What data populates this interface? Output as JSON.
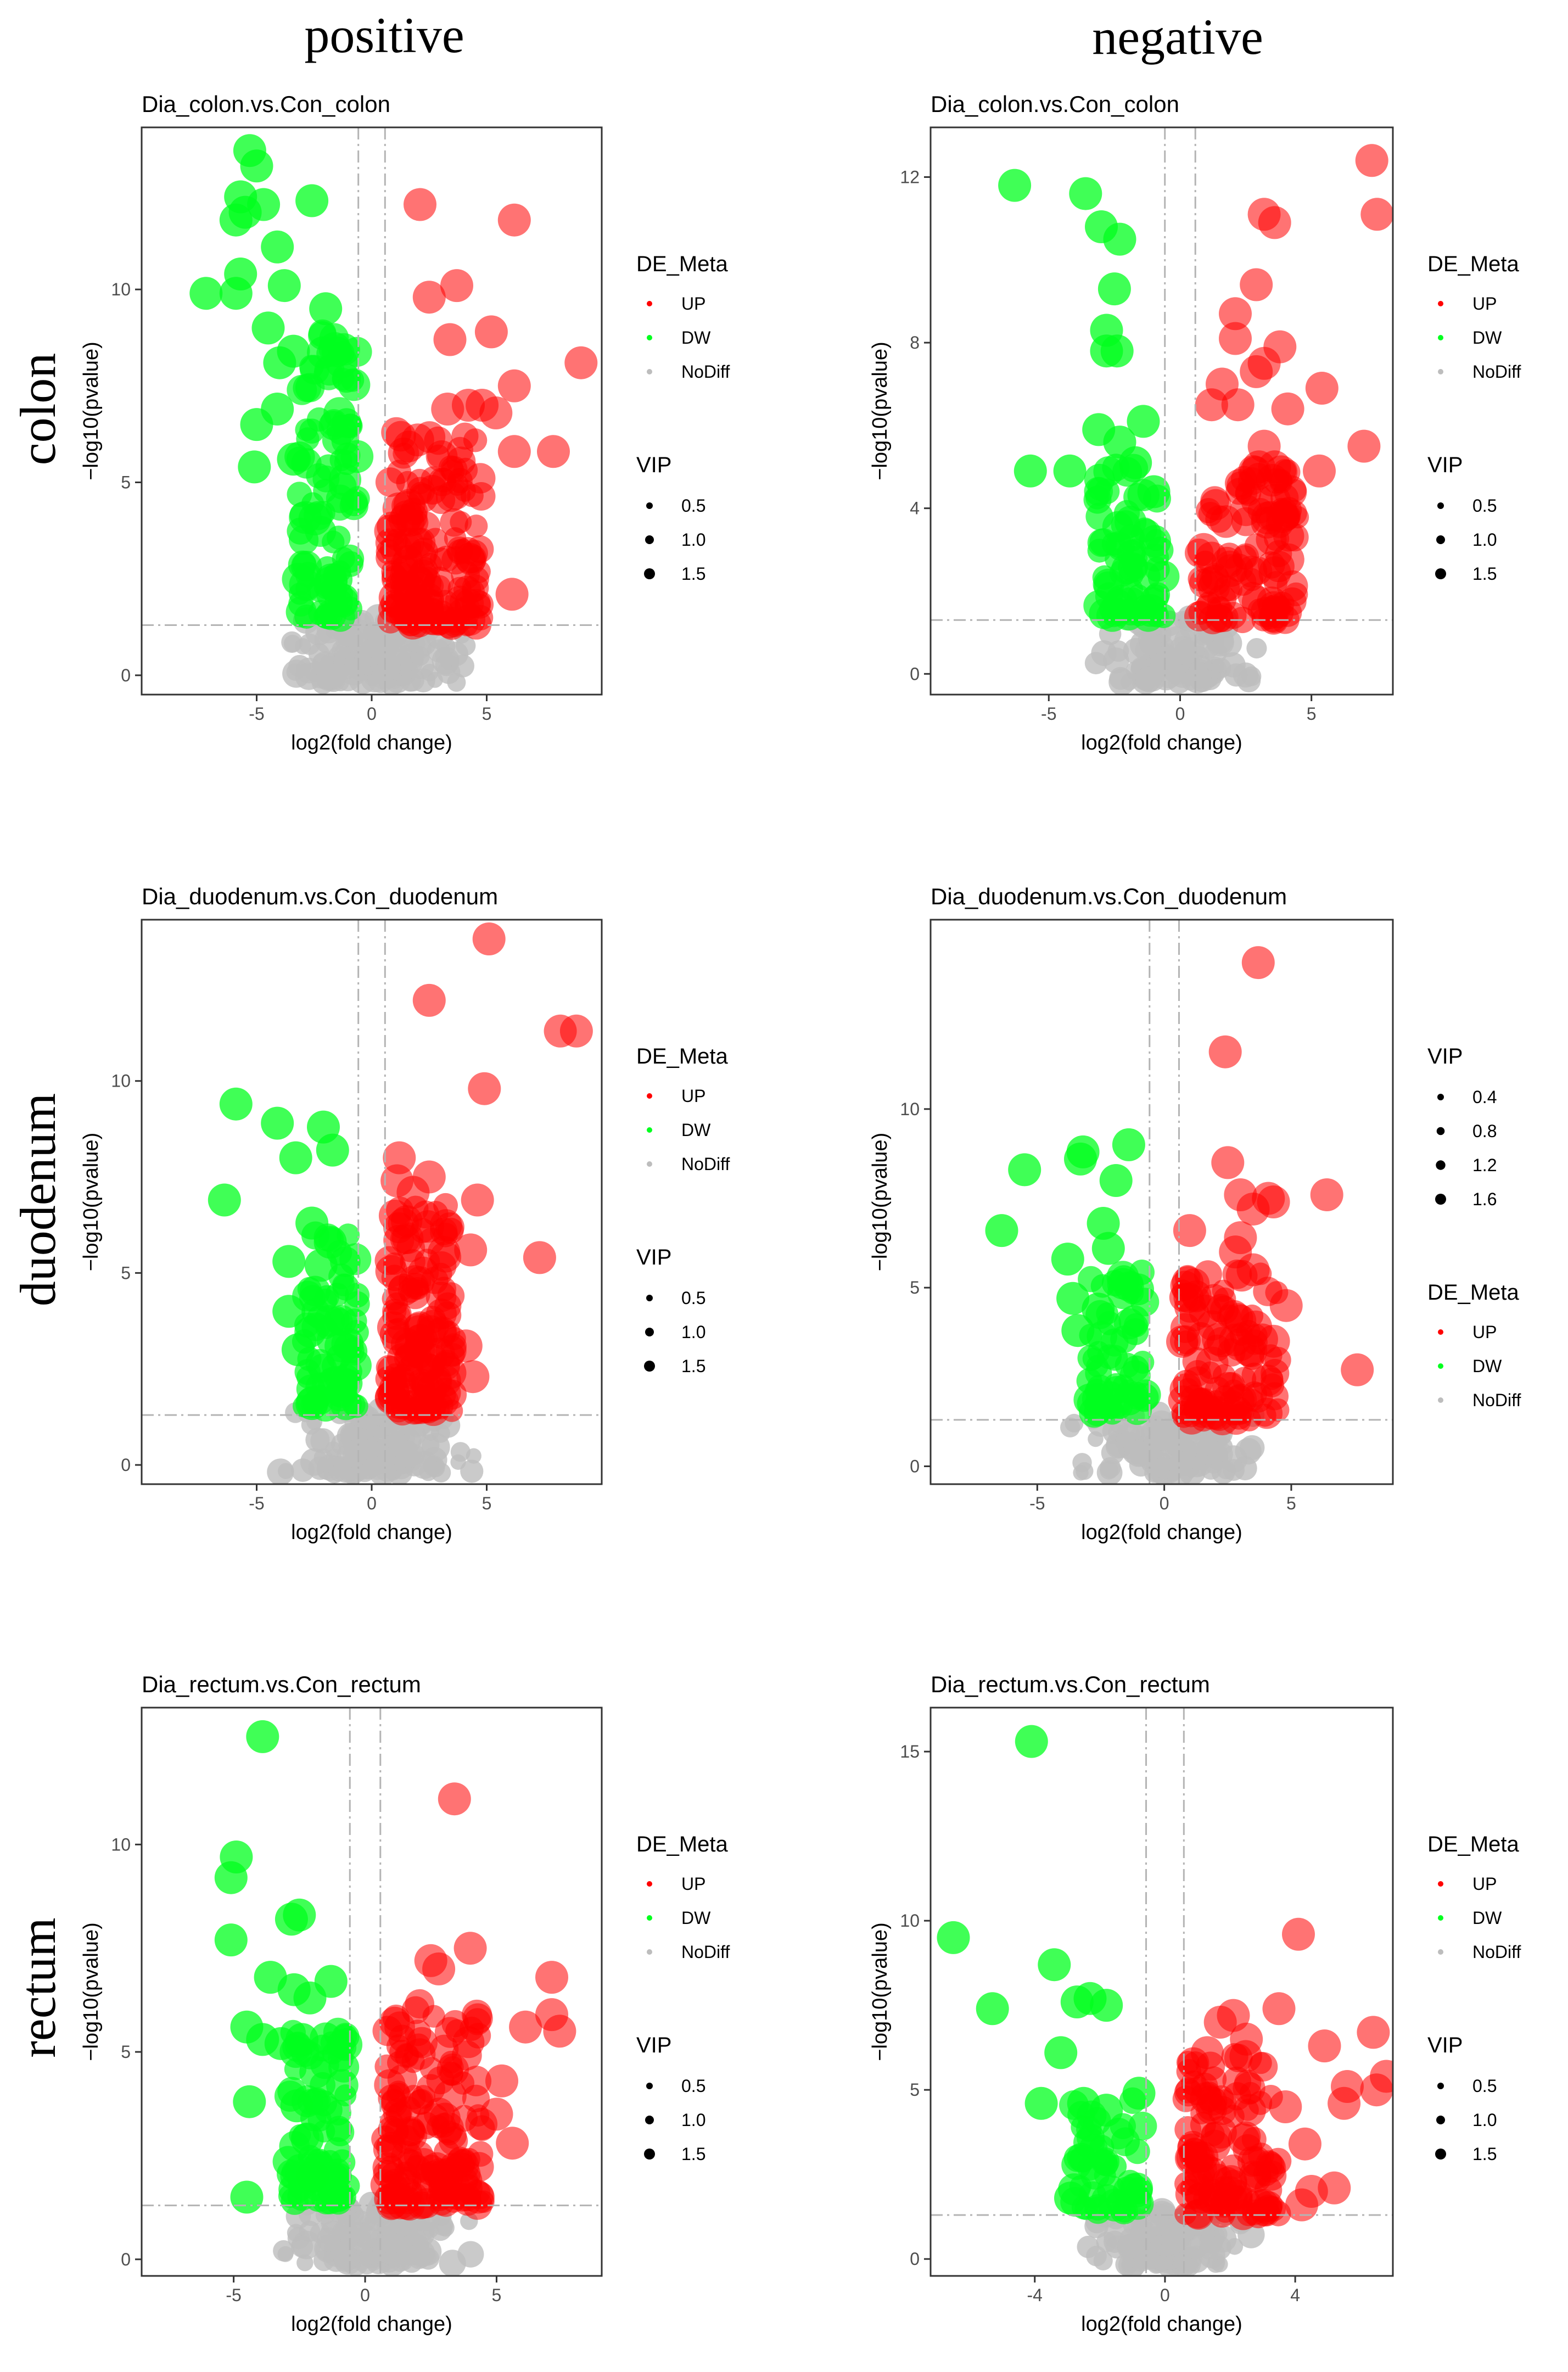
{
  "column_headers": [
    "positive",
    "negative"
  ],
  "row_headers": [
    "colon",
    "duodenum",
    "rectum"
  ],
  "colors": {
    "up": "#ff0000",
    "dw": "#00ff1e",
    "nodiff": "#bdbdbd",
    "threshold_line": "#b4b4b4"
  },
  "chart_data": [
    {
      "type": "scatter",
      "title": "Dia_colon.vs.Con_colon",
      "xlabel": "log2(fold change)",
      "ylabel": "−log10(pvalue)",
      "xlim": [
        -10,
        10
      ],
      "ylim": [
        -0.5,
        14.2
      ],
      "xticks": [
        "-5",
        "0",
        "5"
      ],
      "xtick_values": [
        -5,
        0,
        5
      ],
      "yticks": [
        "0",
        "5",
        "10"
      ],
      "ytick_values": [
        0,
        5,
        10
      ],
      "thresholds": {
        "fc": [
          -0.58,
          0.58
        ],
        "p": 1.3
      },
      "legend_order": [
        "DE_Meta",
        "VIP"
      ],
      "legend_de": {
        "title": "DE_Meta",
        "entries": [
          "UP",
          "DW",
          "NoDiff"
        ]
      },
      "legend_vip": {
        "title": "VIP",
        "entries": [
          "0.5",
          "1.0",
          "1.5"
        ]
      },
      "up_points": [
        [
          2.1,
          12.2
        ],
        [
          6.2,
          11.8
        ],
        [
          2.5,
          9.8
        ],
        [
          3.7,
          10.1
        ],
        [
          3.4,
          8.7
        ],
        [
          5.2,
          8.9
        ],
        [
          6.2,
          7.5
        ],
        [
          9.1,
          8.1
        ],
        [
          5.4,
          6.8
        ],
        [
          4.2,
          7.0
        ],
        [
          3.3,
          6.9
        ],
        [
          4.8,
          7.0
        ],
        [
          6.2,
          5.8
        ],
        [
          7.9,
          5.8
        ],
        [
          6.1,
          2.1
        ],
        [
          2.0,
          6.1
        ]
      ],
      "up_cloud": {
        "x": [
          0.7,
          4.8
        ],
        "y": [
          1.3,
          6.3
        ],
        "n": 160
      },
      "dw_points": [
        [
          -5.3,
          13.6
        ],
        [
          -5.0,
          13.2
        ],
        [
          -5.7,
          12.4
        ],
        [
          -5.5,
          12.0
        ],
        [
          -4.7,
          12.2
        ],
        [
          -5.9,
          11.8
        ],
        [
          -2.6,
          12.3
        ],
        [
          -4.1,
          11.1
        ],
        [
          -7.2,
          9.9
        ],
        [
          -5.7,
          10.4
        ],
        [
          -5.9,
          9.9
        ],
        [
          -3.8,
          10.1
        ],
        [
          -4.5,
          9.0
        ],
        [
          -2.0,
          9.5
        ],
        [
          -4.0,
          8.1
        ],
        [
          -3.4,
          8.4
        ],
        [
          -4.1,
          6.9
        ],
        [
          -5.0,
          6.5
        ],
        [
          -5.1,
          5.4
        ],
        [
          -3.4,
          5.6
        ]
      ],
      "dw_cloud": {
        "x": [
          -3.2,
          -0.6
        ],
        "y": [
          1.5,
          9.0
        ],
        "n": 100
      },
      "nodiff_cloud": {
        "x": [
          -4.0,
          5.5
        ],
        "y": [
          -0.2,
          1.5
        ],
        "n": 150
      }
    },
    {
      "type": "scatter",
      "title": "Dia_colon.vs.Con_colon",
      "xlabel": "log2(fold change)",
      "ylabel": "−log10(pvalue)",
      "xlim": [
        -9.5,
        8.1
      ],
      "ylim": [
        -0.5,
        13.2
      ],
      "xticks": [
        "-5",
        "0",
        "5"
      ],
      "xtick_values": [
        -5,
        0,
        5
      ],
      "yticks": [
        "0",
        "4",
        "8",
        "12"
      ],
      "ytick_values": [
        0,
        4,
        8,
        12
      ],
      "thresholds": {
        "fc": [
          -0.58,
          0.58
        ],
        "p": 1.3
      },
      "legend_order": [
        "DE_Meta",
        "VIP"
      ],
      "legend_de": {
        "title": "DE_Meta",
        "entries": [
          "UP",
          "DW",
          "NoDiff"
        ]
      },
      "legend_vip": {
        "title": "VIP",
        "entries": [
          "0.5",
          "1.0",
          "1.5"
        ]
      },
      "up_points": [
        [
          7.3,
          12.4
        ],
        [
          7.5,
          11.1
        ],
        [
          3.2,
          11.1
        ],
        [
          3.6,
          10.9
        ],
        [
          2.9,
          9.4
        ],
        [
          2.1,
          8.7
        ],
        [
          2.1,
          8.1
        ],
        [
          3.8,
          7.9
        ],
        [
          3.2,
          7.5
        ],
        [
          2.9,
          7.3
        ],
        [
          1.6,
          7.0
        ],
        [
          5.4,
          6.9
        ],
        [
          2.2,
          6.5
        ],
        [
          4.1,
          6.4
        ],
        [
          1.2,
          6.5
        ],
        [
          3.2,
          5.5
        ],
        [
          3.0,
          5.0
        ],
        [
          3.6,
          5.0
        ],
        [
          5.3,
          4.9
        ],
        [
          7.0,
          5.5
        ],
        [
          4.2,
          4.4
        ],
        [
          3.9,
          3.8
        ],
        [
          3.7,
          1.5
        ]
      ],
      "up_cloud": {
        "x": [
          0.7,
          4.5
        ],
        "y": [
          1.3,
          5.0
        ],
        "n": 110
      },
      "dw_points": [
        [
          -6.3,
          11.8
        ],
        [
          -3.6,
          11.6
        ],
        [
          -3.0,
          10.8
        ],
        [
          -2.3,
          10.5
        ],
        [
          -2.5,
          9.3
        ],
        [
          -2.8,
          8.3
        ],
        [
          -2.8,
          7.8
        ],
        [
          -2.4,
          7.8
        ],
        [
          -1.4,
          6.1
        ],
        [
          -3.1,
          5.9
        ],
        [
          -2.3,
          5.6
        ],
        [
          -1.7,
          5.1
        ],
        [
          -5.7,
          4.9
        ],
        [
          -4.2,
          4.9
        ],
        [
          -1.0,
          4.4
        ]
      ],
      "dw_cloud": {
        "x": [
          -3.2,
          -0.6
        ],
        "y": [
          1.4,
          5.0
        ],
        "n": 70
      },
      "nodiff_cloud": {
        "x": [
          -3.5,
          4.5
        ],
        "y": [
          -0.2,
          1.4
        ],
        "n": 120
      }
    },
    {
      "type": "scatter",
      "title": "Dia_duodenum.vs.Con_duodenum",
      "xlabel": "log2(fold change)",
      "ylabel": "−log10(pvalue)",
      "xlim": [
        -10,
        10
      ],
      "ylim": [
        -0.5,
        14.2
      ],
      "xticks": [
        "-5",
        "0",
        "5"
      ],
      "xtick_values": [
        -5,
        0,
        5
      ],
      "yticks": [
        "0",
        "5",
        "10"
      ],
      "ytick_values": [
        0,
        5,
        10
      ],
      "thresholds": {
        "fc": [
          -0.58,
          0.58
        ],
        "p": 1.3
      },
      "legend_order": [
        "DE_Meta",
        "VIP"
      ],
      "legend_de": {
        "title": "DE_Meta",
        "entries": [
          "UP",
          "DW",
          "NoDiff"
        ]
      },
      "legend_vip": {
        "title": "VIP",
        "entries": [
          "0.5",
          "1.0",
          "1.5"
        ]
      },
      "up_points": [
        [
          5.1,
          13.7
        ],
        [
          2.5,
          12.1
        ],
        [
          8.2,
          11.3
        ],
        [
          8.9,
          11.3
        ],
        [
          4.9,
          9.8
        ],
        [
          1.2,
          8.0
        ],
        [
          2.5,
          7.5
        ],
        [
          4.6,
          6.9
        ],
        [
          7.3,
          5.4
        ],
        [
          4.3,
          5.6
        ],
        [
          4.1,
          3.1
        ],
        [
          4.4,
          2.3
        ],
        [
          3.4,
          2.4
        ],
        [
          1.1,
          7.4
        ],
        [
          1.8,
          7.1
        ]
      ],
      "up_cloud": {
        "x": [
          0.7,
          3.6
        ],
        "y": [
          1.4,
          6.8
        ],
        "n": 140
      },
      "dw_points": [
        [
          -5.9,
          9.4
        ],
        [
          -4.1,
          8.9
        ],
        [
          -2.1,
          8.8
        ],
        [
          -1.7,
          8.2
        ],
        [
          -3.3,
          8.0
        ],
        [
          -6.4,
          6.9
        ],
        [
          -2.6,
          6.3
        ],
        [
          -1.8,
          5.8
        ],
        [
          -3.6,
          5.3
        ],
        [
          -2.2,
          5.2
        ],
        [
          -3.6,
          4.0
        ],
        [
          -3.2,
          3.0
        ],
        [
          -2.6,
          1.6
        ]
      ],
      "dw_cloud": {
        "x": [
          -3.0,
          -0.6
        ],
        "y": [
          1.5,
          6.0
        ],
        "n": 70
      },
      "nodiff_cloud": {
        "x": [
          -4.0,
          6.0
        ],
        "y": [
          -0.2,
          1.4
        ],
        "n": 140
      }
    },
    {
      "type": "scatter",
      "title": "Dia_duodenum.vs.Con_duodenum",
      "xlabel": "log2(fold change)",
      "ylabel": "−log10(pvalue)",
      "xlim": [
        -9.2,
        9.0
      ],
      "ylim": [
        -0.5,
        15.3
      ],
      "xticks": [
        "-5",
        "0",
        "5"
      ],
      "xtick_values": [
        -5,
        0,
        5
      ],
      "yticks": [
        "0",
        "5",
        "10"
      ],
      "ytick_values": [
        0,
        5,
        10
      ],
      "thresholds": {
        "fc": [
          -0.58,
          0.58
        ],
        "p": 1.3
      },
      "legend_order": [
        "VIP",
        "DE_Meta"
      ],
      "legend_de": {
        "title": "DE_Meta",
        "entries": [
          "UP",
          "DW",
          "NoDiff"
        ]
      },
      "legend_vip": {
        "title": "VIP",
        "entries": [
          "0.4",
          "0.8",
          "1.2",
          "1.6"
        ]
      },
      "up_points": [
        [
          3.7,
          14.1
        ],
        [
          2.4,
          11.6
        ],
        [
          2.5,
          8.5
        ],
        [
          3.0,
          7.6
        ],
        [
          4.1,
          7.5
        ],
        [
          4.3,
          7.4
        ],
        [
          6.4,
          7.6
        ],
        [
          3.5,
          7.2
        ],
        [
          1.0,
          6.6
        ],
        [
          3.0,
          6.4
        ],
        [
          2.8,
          6.0
        ],
        [
          3.5,
          5.5
        ],
        [
          4.8,
          4.5
        ],
        [
          3.6,
          3.9
        ],
        [
          4.3,
          3.5
        ],
        [
          7.6,
          2.7
        ]
      ],
      "up_cloud": {
        "x": [
          0.7,
          4.5
        ],
        "y": [
          1.3,
          5.5
        ],
        "n": 110
      },
      "dw_points": [
        [
          -1.4,
          9.0
        ],
        [
          -3.2,
          8.8
        ],
        [
          -3.3,
          8.6
        ],
        [
          -5.5,
          8.3
        ],
        [
          -1.9,
          8.0
        ],
        [
          -6.4,
          6.6
        ],
        [
          -2.4,
          6.8
        ],
        [
          -3.8,
          5.8
        ],
        [
          -2.2,
          6.1
        ],
        [
          -3.6,
          4.7
        ],
        [
          -3.4,
          3.8
        ],
        [
          -2.6,
          4.4
        ]
      ],
      "dw_cloud": {
        "x": [
          -3.0,
          -0.6
        ],
        "y": [
          1.5,
          5.5
        ],
        "n": 60
      },
      "nodiff_cloud": {
        "x": [
          -3.5,
          6.0
        ],
        "y": [
          -0.2,
          1.5
        ],
        "n": 120
      }
    },
    {
      "type": "scatter",
      "title": "Dia_rectum.vs.Con_rectum",
      "xlabel": "log2(fold change)",
      "ylabel": "−log10(pvalue)",
      "xlim": [
        -8.5,
        9.0
      ],
      "ylim": [
        -0.4,
        13.3
      ],
      "xticks": [
        "-5",
        "0",
        "5"
      ],
      "xtick_values": [
        -5,
        0,
        5
      ],
      "yticks": [
        "0",
        "5",
        "10"
      ],
      "ytick_values": [
        0,
        5,
        10
      ],
      "thresholds": {
        "fc": [
          -0.58,
          0.58
        ],
        "p": 1.3
      },
      "legend_order": [
        "DE_Meta",
        "VIP"
      ],
      "legend_de": {
        "title": "DE_Meta",
        "entries": [
          "UP",
          "DW",
          "NoDiff"
        ]
      },
      "legend_vip": {
        "title": "VIP",
        "entries": [
          "0.5",
          "1.0",
          "1.5"
        ]
      },
      "up_points": [
        [
          3.4,
          11.1
        ],
        [
          4.0,
          7.5
        ],
        [
          2.5,
          7.2
        ],
        [
          2.8,
          7.0
        ],
        [
          7.1,
          6.8
        ],
        [
          7.1,
          5.9
        ],
        [
          7.4,
          5.5
        ],
        [
          6.1,
          5.6
        ],
        [
          5.2,
          4.3
        ],
        [
          5.0,
          3.5
        ],
        [
          5.6,
          2.8
        ],
        [
          4.3,
          1.5
        ]
      ],
      "up_cloud": {
        "x": [
          0.7,
          4.5
        ],
        "y": [
          1.3,
          6.2
        ],
        "n": 160
      },
      "dw_points": [
        [
          -3.9,
          12.6
        ],
        [
          -4.9,
          9.7
        ],
        [
          -5.1,
          9.2
        ],
        [
          -2.5,
          8.3
        ],
        [
          -2.8,
          8.2
        ],
        [
          -5.1,
          7.7
        ],
        [
          -3.6,
          6.8
        ],
        [
          -1.3,
          6.7
        ],
        [
          -2.7,
          6.5
        ],
        [
          -2.1,
          6.3
        ],
        [
          -4.5,
          5.6
        ],
        [
          -3.9,
          5.3
        ],
        [
          -3.2,
          5.2
        ],
        [
          -2.4,
          5.3
        ],
        [
          -4.4,
          3.8
        ],
        [
          -2.6,
          3.7
        ],
        [
          -2.2,
          2.9
        ],
        [
          -2.0,
          2.0
        ],
        [
          -4.5,
          1.5
        ]
      ],
      "dw_cloud": {
        "x": [
          -3.0,
          -0.6
        ],
        "y": [
          1.4,
          5.5
        ],
        "n": 80
      },
      "nodiff_cloud": {
        "x": [
          -3.8,
          5.5
        ],
        "y": [
          -0.1,
          1.4
        ],
        "n": 150
      }
    },
    {
      "type": "scatter",
      "title": "Dia_rectum.vs.Con_rectum",
      "xlabel": "log2(fold change)",
      "ylabel": "−log10(pvalue)",
      "xlim": [
        -7.2,
        7.0
      ],
      "ylim": [
        -0.5,
        16.3
      ],
      "xticks": [
        "-4",
        "0",
        "4"
      ],
      "xtick_values": [
        -4,
        0,
        4
      ],
      "yticks": [
        "0",
        "5",
        "10",
        "15"
      ],
      "ytick_values": [
        0,
        5,
        10,
        15
      ],
      "thresholds": {
        "fc": [
          -0.58,
          0.58
        ],
        "p": 1.3
      },
      "legend_order": [
        "DE_Meta",
        "VIP"
      ],
      "legend_de": {
        "title": "DE_Meta",
        "entries": [
          "UP",
          "DW",
          "NoDiff"
        ]
      },
      "legend_vip": {
        "title": "VIP",
        "entries": [
          "0.5",
          "1.0",
          "1.5"
        ]
      },
      "up_points": [
        [
          4.1,
          9.6
        ],
        [
          1.7,
          7.0
        ],
        [
          2.1,
          7.2
        ],
        [
          3.5,
          7.4
        ],
        [
          1.3,
          6.1
        ],
        [
          2.5,
          6.5
        ],
        [
          4.9,
          6.3
        ],
        [
          6.4,
          6.7
        ],
        [
          5.6,
          5.1
        ],
        [
          6.8,
          5.4
        ],
        [
          5.5,
          4.6
        ],
        [
          6.5,
          5.0
        ],
        [
          3.7,
          4.5
        ],
        [
          4.3,
          3.4
        ],
        [
          4.5,
          2.0
        ],
        [
          5.2,
          2.1
        ],
        [
          4.2,
          1.6
        ]
      ],
      "up_cloud": {
        "x": [
          0.6,
          3.5
        ],
        "y": [
          1.3,
          6.0
        ],
        "n": 120
      },
      "dw_points": [
        [
          -4.1,
          15.3
        ],
        [
          -6.5,
          9.5
        ],
        [
          -3.4,
          8.7
        ],
        [
          -2.7,
          7.6
        ],
        [
          -2.3,
          7.7
        ],
        [
          -1.8,
          7.5
        ],
        [
          -5.3,
          7.4
        ],
        [
          -3.2,
          6.1
        ],
        [
          -3.8,
          4.6
        ],
        [
          -2.5,
          4.6
        ],
        [
          -1.8,
          4.4
        ],
        [
          -0.8,
          4.9
        ],
        [
          -2.9,
          1.8
        ]
      ],
      "dw_cloud": {
        "x": [
          -2.8,
          -0.6
        ],
        "y": [
          1.4,
          4.7
        ],
        "n": 50
      },
      "nodiff_cloud": {
        "x": [
          -3.0,
          3.5
        ],
        "y": [
          -0.2,
          1.4
        ],
        "n": 120
      }
    }
  ]
}
